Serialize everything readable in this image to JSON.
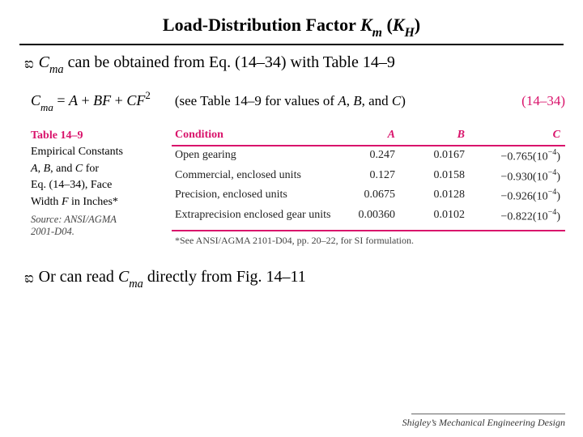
{
  "colors": {
    "accent": "#d9136b"
  },
  "title": {
    "pre": "Load-Distribution Factor ",
    "var1": "K",
    "sub1": "m",
    "mid": " (",
    "var2": "K",
    "sub2": "H",
    "post": ")"
  },
  "bullet_glyph": "ಐ",
  "bullet1": {
    "var": "C",
    "sub": "ma",
    "text": " can be obtained from Eq. (14–34) with Table 14–9"
  },
  "equation": {
    "lhs_var": "C",
    "lhs_sub": "ma",
    "eq": " = ",
    "a": "A",
    "plus1": " + ",
    "b": "B",
    "f": "F",
    "plus2": " + ",
    "c": "C",
    "f2": "F",
    "sup2": "2",
    "note_pre": "(see Table 14–9 for values of ",
    "note_a": "A",
    "note_sep1": ", ",
    "note_b": "B",
    "note_sep2": ", and ",
    "note_c": "C",
    "note_post": ")",
    "num": "(14–34)"
  },
  "table": {
    "label": "Table 14–9",
    "caption_l1": "Empirical Constants",
    "caption_l2_pre": "",
    "caption_l2_a": "A",
    "caption_l2_s1": ", ",
    "caption_l2_b": "B",
    "caption_l2_s2": ", and ",
    "caption_l2_c": "C",
    "caption_l2_post": " for",
    "caption_l3": "Eq. (14–34), Face",
    "caption_l4_pre": "Width ",
    "caption_l4_var": "F",
    "caption_l4_post": " in Inches*",
    "source_l1": "Source: ANSI/AGMA",
    "source_l2": "2001-D04.",
    "headers": {
      "condition": "Condition",
      "a": "A",
      "b": "B",
      "c": "C"
    },
    "rows": [
      {
        "condition": "Open gearing",
        "a": "0.247",
        "b": "0.0167",
        "c_pre": "−0.765(10",
        "c_sup": "−4",
        "c_post": ")"
      },
      {
        "condition": "Commercial, enclosed units",
        "a": "0.127",
        "b": "0.0158",
        "c_pre": "−0.930(10",
        "c_sup": "−4",
        "c_post": ")"
      },
      {
        "condition": "Precision, enclosed units",
        "a": "0.0675",
        "b": "0.0128",
        "c_pre": "−0.926(10",
        "c_sup": "−4",
        "c_post": ")"
      },
      {
        "condition": "Extraprecision enclosed gear units",
        "a": "0.00360",
        "b": "0.0102",
        "c_pre": "−0.822(10",
        "c_sup": "−4",
        "c_post": ")"
      }
    ],
    "footnote": "*See ANSI/AGMA 2101-D04, pp. 20–22, for SI formulation."
  },
  "bullet2": {
    "pre": "Or can read ",
    "var": "C",
    "sub": "ma",
    "post": " directly from Fig. 14–11"
  },
  "footer": "Shigley’s Mechanical Engineering Design"
}
